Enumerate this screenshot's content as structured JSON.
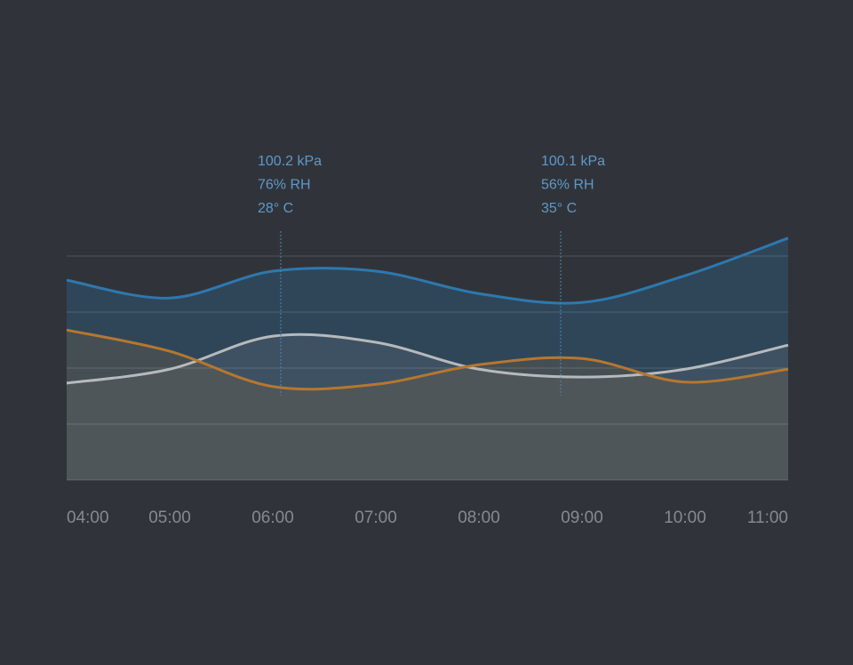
{
  "chart_data": {
    "type": "area",
    "categories": [
      "04:00",
      "05:00",
      "06:00",
      "07:00",
      "08:00",
      "09:00",
      "10:00",
      "11:00"
    ],
    "series": [
      {
        "color": "#2e78ad",
        "values": [
          3.57,
          3.25,
          3.73,
          3.73,
          3.33,
          3.17,
          3.65,
          4.32
        ]
      },
      {
        "color": "#b6ba bc",
        "values": [
          1.73,
          1.98,
          2.57,
          2.46,
          1.98,
          1.84,
          1.98,
          2.41
        ]
      },
      {
        "color": "#b5772f",
        "values": [
          2.68,
          2.3,
          1.67,
          1.71,
          2.06,
          2.17,
          1.75,
          1.98
        ]
      }
    ],
    "ylim": [
      0,
      4
    ],
    "yticks": [
      0,
      1,
      2,
      3,
      4
    ],
    "grid": true,
    "annotations": [
      {
        "lines": [
          "100.2 kPa",
          "76% RH",
          "28° C"
        ]
      },
      {
        "lines": [
          "100.1 kPa",
          "56% RH",
          "35° C"
        ]
      }
    ]
  }
}
